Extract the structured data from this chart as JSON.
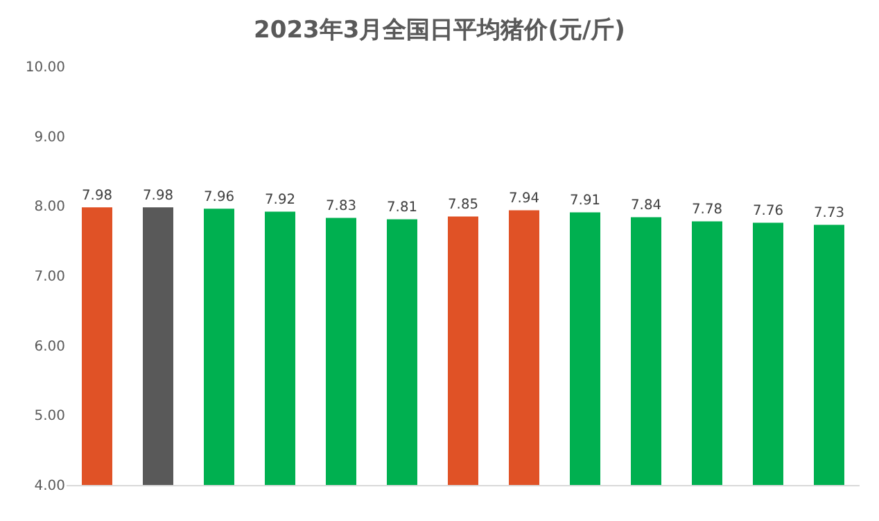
{
  "chart_data": {
    "type": "bar",
    "title": "2023年3月全国日平均猪价(元/斤)",
    "categories": [
      null,
      null,
      null,
      null,
      null,
      null,
      null,
      null,
      null,
      null,
      null,
      null,
      null
    ],
    "values": [
      7.98,
      7.98,
      7.96,
      7.92,
      7.83,
      7.81,
      7.85,
      7.94,
      7.91,
      7.84,
      7.78,
      7.76,
      7.73
    ],
    "colors": [
      "#e05226",
      "#595959",
      "#00b050",
      "#00b050",
      "#00b050",
      "#00b050",
      "#e05226",
      "#e05226",
      "#00b050",
      "#00b050",
      "#00b050",
      "#00b050",
      "#00b050"
    ],
    "ylim": [
      4,
      10
    ],
    "yticks": [
      {
        "value": 4,
        "label": "4.00"
      },
      {
        "value": 5,
        "label": "5.00"
      },
      {
        "value": 6,
        "label": "6.00"
      },
      {
        "value": 7,
        "label": "7.00"
      },
      {
        "value": 8,
        "label": "8.00"
      },
      {
        "value": 9,
        "label": "9.00"
      },
      {
        "value": 10,
        "label": "10.00"
      }
    ],
    "data_labels": true,
    "grid": false,
    "legend": false
  }
}
